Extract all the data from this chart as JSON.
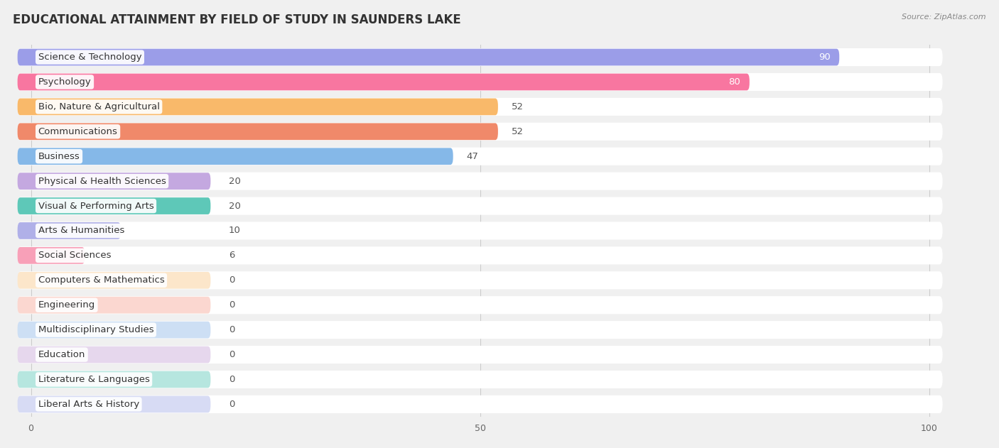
{
  "title": "EDUCATIONAL ATTAINMENT BY FIELD OF STUDY IN SAUNDERS LAKE",
  "source": "Source: ZipAtlas.com",
  "categories": [
    "Science & Technology",
    "Psychology",
    "Bio, Nature & Agricultural",
    "Communications",
    "Business",
    "Physical & Health Sciences",
    "Visual & Performing Arts",
    "Arts & Humanities",
    "Social Sciences",
    "Computers & Mathematics",
    "Engineering",
    "Multidisciplinary Studies",
    "Education",
    "Literature & Languages",
    "Liberal Arts & History"
  ],
  "values": [
    90,
    80,
    52,
    52,
    47,
    20,
    20,
    10,
    6,
    0,
    0,
    0,
    0,
    0,
    0
  ],
  "bar_colors": [
    "#9b9de8",
    "#f876a0",
    "#f9b96a",
    "#f0896a",
    "#85b8e8",
    "#c4a8e0",
    "#5ec8b8",
    "#b0b0e8",
    "#f8a0b8",
    "#f9c88a",
    "#f8a898",
    "#90b8e8",
    "#c8a8d8",
    "#5ec8b8",
    "#a8b0e8"
  ],
  "xlim": [
    0,
    100
  ],
  "background_color": "#f0f0f0",
  "row_bg_color": "#ffffff",
  "title_fontsize": 12,
  "label_fontsize": 9.5,
  "value_fontsize": 9.5
}
